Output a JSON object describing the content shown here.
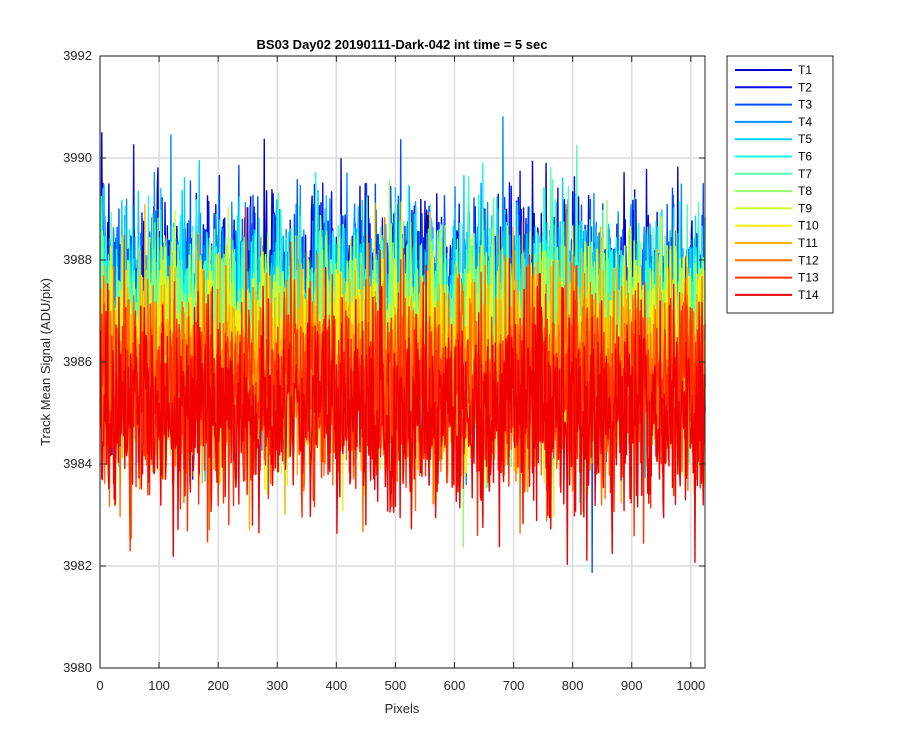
{
  "chart_data": {
    "type": "line",
    "title": "BS03 Day02 20190111-Dark-042 int time = 5 sec",
    "xlabel": "Pixels",
    "ylabel": "Track Mean Signal (ADU/pix)",
    "xlim": [
      0,
      1024
    ],
    "ylim": [
      3980,
      3992
    ],
    "xticks": [
      0,
      100,
      200,
      300,
      400,
      500,
      600,
      700,
      800,
      900,
      1000
    ],
    "yticks": [
      3980,
      3982,
      3984,
      3986,
      3988,
      3990,
      3992
    ],
    "grid": true,
    "legend_position": "outside-right",
    "x_points": 1024,
    "series": [
      {
        "name": "T1",
        "color": "#0000c8",
        "mean": 3987.2,
        "spread": 1.0
      },
      {
        "name": "T2",
        "color": "#0010f0",
        "mean": 3987.1,
        "spread": 1.0
      },
      {
        "name": "T3",
        "color": "#0050ff",
        "mean": 3987.0,
        "spread": 1.0
      },
      {
        "name": "T4",
        "color": "#0090ff",
        "mean": 3987.0,
        "spread": 1.0
      },
      {
        "name": "T5",
        "color": "#00d0ff",
        "mean": 3986.9,
        "spread": 1.0
      },
      {
        "name": "T6",
        "color": "#10fff0",
        "mean": 3986.8,
        "spread": 1.0
      },
      {
        "name": "T7",
        "color": "#50ffb0",
        "mean": 3986.6,
        "spread": 1.0
      },
      {
        "name": "T8",
        "color": "#90ff70",
        "mean": 3986.4,
        "spread": 1.0
      },
      {
        "name": "T9",
        "color": "#d0ff30",
        "mean": 3986.2,
        "spread": 1.0
      },
      {
        "name": "T10",
        "color": "#ffef00",
        "mean": 3986.0,
        "spread": 1.0
      },
      {
        "name": "T11",
        "color": "#ffb000",
        "mean": 3985.8,
        "spread": 1.0
      },
      {
        "name": "T12",
        "color": "#ff7000",
        "mean": 3985.6,
        "spread": 1.0
      },
      {
        "name": "T13",
        "color": "#ff3000",
        "mean": 3985.4,
        "spread": 1.0
      },
      {
        "name": "T14",
        "color": "#f00000",
        "mean": 3985.1,
        "spread": 1.0
      }
    ]
  }
}
